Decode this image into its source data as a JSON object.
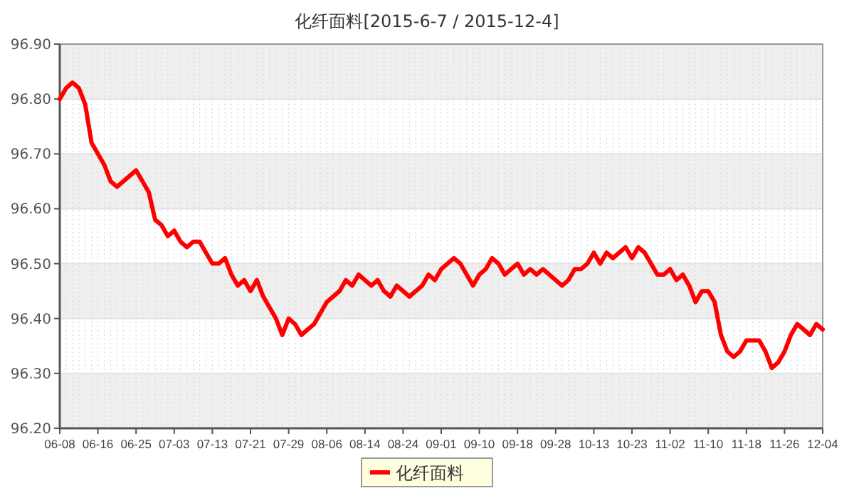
{
  "chart_data": {
    "type": "line",
    "title": "化纤面料[2015-6-7 / 2015-12-4]",
    "categories": [
      "06-08",
      null,
      null,
      null,
      null,
      null,
      "06-16",
      null,
      null,
      null,
      null,
      null,
      "06-25",
      null,
      null,
      null,
      null,
      null,
      "07-03",
      null,
      null,
      null,
      null,
      null,
      "07-13",
      null,
      null,
      null,
      null,
      null,
      "07-21",
      null,
      null,
      null,
      null,
      null,
      "07-29",
      null,
      null,
      null,
      null,
      null,
      "08-06",
      null,
      null,
      null,
      null,
      null,
      "08-14",
      null,
      null,
      null,
      null,
      null,
      "08-24",
      null,
      null,
      null,
      null,
      null,
      "09-01",
      null,
      null,
      null,
      null,
      null,
      "09-10",
      null,
      null,
      null,
      null,
      null,
      "09-18",
      null,
      null,
      null,
      null,
      null,
      "09-28",
      null,
      null,
      null,
      null,
      null,
      "10-13",
      null,
      null,
      null,
      null,
      null,
      "10-23",
      null,
      null,
      null,
      null,
      null,
      "11-02",
      null,
      null,
      null,
      null,
      null,
      "11-10",
      null,
      null,
      null,
      null,
      null,
      "11-18",
      null,
      null,
      null,
      null,
      null,
      "11-26",
      null,
      null,
      null,
      null,
      null,
      "12-04"
    ],
    "series": [
      {
        "name": "化纤面料",
        "color": "#ff0000",
        "values": [
          96.8,
          96.82,
          96.83,
          96.82,
          96.79,
          96.72,
          96.7,
          96.68,
          96.65,
          96.64,
          96.65,
          96.66,
          96.67,
          96.65,
          96.63,
          96.58,
          96.57,
          96.55,
          96.56,
          96.54,
          96.53,
          96.54,
          96.54,
          96.52,
          96.5,
          96.5,
          96.51,
          96.48,
          96.46,
          96.47,
          96.45,
          96.47,
          96.44,
          96.42,
          96.4,
          96.37,
          96.4,
          96.39,
          96.37,
          96.38,
          96.39,
          96.41,
          96.43,
          96.44,
          96.45,
          96.47,
          96.46,
          96.48,
          96.47,
          96.46,
          96.47,
          96.45,
          96.44,
          96.46,
          96.45,
          96.44,
          96.45,
          96.46,
          96.48,
          96.47,
          96.49,
          96.5,
          96.51,
          96.5,
          96.48,
          96.46,
          96.48,
          96.49,
          96.51,
          96.5,
          96.48,
          96.49,
          96.5,
          96.48,
          96.49,
          96.48,
          96.49,
          96.48,
          96.47,
          96.46,
          96.47,
          96.49,
          96.49,
          96.5,
          96.52,
          96.5,
          96.52,
          96.51,
          96.52,
          96.53,
          96.51,
          96.53,
          96.52,
          96.5,
          96.48,
          96.48,
          96.49,
          96.47,
          96.48,
          96.46,
          96.43,
          96.45,
          96.45,
          96.43,
          96.37,
          96.34,
          96.33,
          96.34,
          96.36,
          96.36,
          96.36,
          96.34,
          96.31,
          96.32,
          96.34,
          96.37,
          96.39,
          96.38,
          96.37,
          96.39,
          96.38
        ]
      }
    ],
    "ylim": [
      96.2,
      96.9
    ],
    "yticks": [
      {
        "value": 96.2,
        "label": "96.20"
      },
      {
        "value": 96.3,
        "label": "96.30"
      },
      {
        "value": 96.4,
        "label": "96.40"
      },
      {
        "value": 96.5,
        "label": "96.50"
      },
      {
        "value": 96.6,
        "label": "96.60"
      },
      {
        "value": 96.7,
        "label": "96.70"
      },
      {
        "value": 96.8,
        "label": "96.80"
      },
      {
        "value": 96.9,
        "label": "96.90"
      }
    ],
    "grid": true,
    "legend": "bottom",
    "marker": "none",
    "line_style": "solid"
  }
}
